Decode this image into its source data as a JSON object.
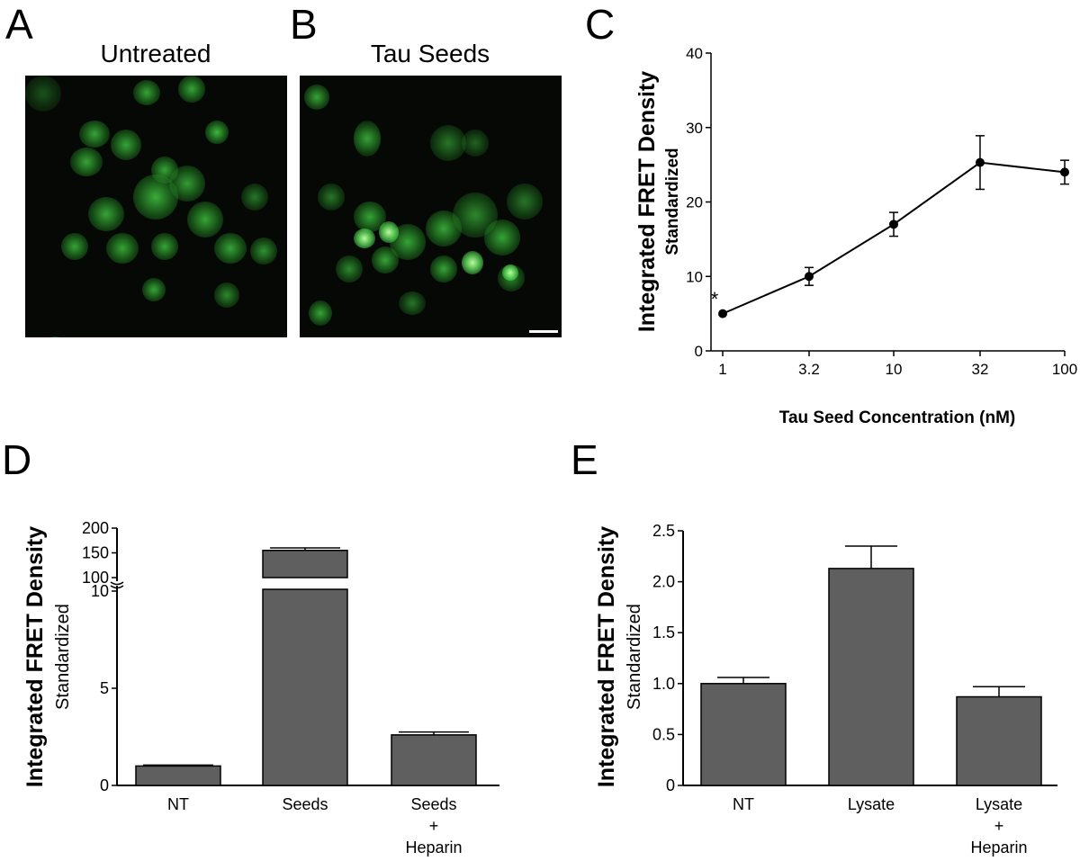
{
  "panels": {
    "A": {
      "letter": "A",
      "title": "Untreated"
    },
    "B": {
      "letter": "B",
      "title": "Tau Seeds"
    },
    "C": {
      "letter": "C"
    },
    "D": {
      "letter": "D"
    },
    "E": {
      "letter": "E"
    }
  },
  "colors": {
    "bar_fill": "#5f5f5f",
    "cell_green": "#3fbf3f",
    "aggregate_green": "#b6ff9c",
    "background_dark": "#050805"
  },
  "chart_data": [
    {
      "id": "C",
      "type": "line",
      "xlabel": "Tau Seed Concentration (nM)",
      "ylabel": "Integrated FRET Density",
      "ylabel2": "Standardized",
      "xscale": "log",
      "xticks": [
        "1",
        "3.2",
        "10",
        "32",
        "100"
      ],
      "x": [
        1,
        3.2,
        10,
        32,
        100
      ],
      "y": [
        5.0,
        10.0,
        17.0,
        25.3,
        24.0
      ],
      "err": [
        0.3,
        1.2,
        1.6,
        3.6,
        1.6
      ],
      "ylim": [
        0,
        40
      ],
      "yticks": [
        0,
        10,
        20,
        30,
        40
      ],
      "annotation": "*",
      "annotation_x": 1
    },
    {
      "id": "D",
      "type": "bar",
      "ylabel": "Integrated  FRET Density",
      "ylabel2": "Standardized",
      "categories": [
        [
          "NT"
        ],
        [
          "Seeds"
        ],
        [
          "Seeds",
          "+",
          "Heparin"
        ]
      ],
      "values": [
        1.0,
        155,
        2.6
      ],
      "err": [
        0.05,
        5,
        0.15
      ],
      "axis_break": true,
      "lower_ylim": [
        0,
        10
      ],
      "lower_yticks": [
        0,
        5,
        10
      ],
      "upper_ylim": [
        100,
        200
      ],
      "upper_yticks": [
        100,
        150,
        200
      ]
    },
    {
      "id": "E",
      "type": "bar",
      "ylabel": "Integrated  FRET Density",
      "ylabel2": "Standardized",
      "categories": [
        [
          "NT"
        ],
        [
          "Lysate"
        ],
        [
          "Lysate",
          "+",
          "Heparin"
        ]
      ],
      "values": [
        1.0,
        2.13,
        0.87
      ],
      "err": [
        0.06,
        0.22,
        0.1
      ],
      "ylim": [
        0,
        2.5
      ],
      "yticks": [
        "0",
        "0.5",
        "1.0",
        "1.5",
        "2.0",
        "2.5"
      ]
    }
  ]
}
